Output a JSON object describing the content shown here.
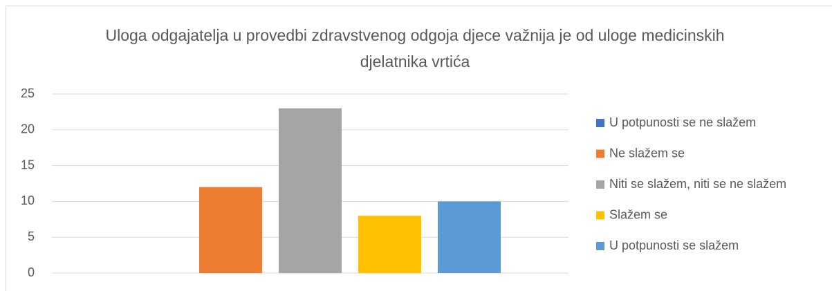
{
  "chart_data": {
    "type": "bar",
    "title": "Uloga odgajatelja u provedbi zdravstvenog odgoja djece važnija je od uloge medicinskih djelatnika vrtića",
    "categories": [
      null
    ],
    "series": [
      {
        "name": "U potpunosti se ne slažem",
        "color": "#4472c4",
        "values": [
          0
        ]
      },
      {
        "name": "Ne slažem se",
        "color": "#ed7d31",
        "values": [
          12
        ]
      },
      {
        "name": "Niti se slažem, niti se ne slažem",
        "color": "#a5a5a5",
        "values": [
          23
        ]
      },
      {
        "name": "Slažem se",
        "color": "#ffc000",
        "values": [
          8
        ]
      },
      {
        "name": "U potpunosti se slažem",
        "color": "#5b9bd5",
        "values": [
          10
        ]
      }
    ],
    "ylim": [
      0,
      25
    ],
    "yticks": [
      0,
      5,
      10,
      15,
      20,
      25
    ],
    "grid": true,
    "legend": "right"
  }
}
